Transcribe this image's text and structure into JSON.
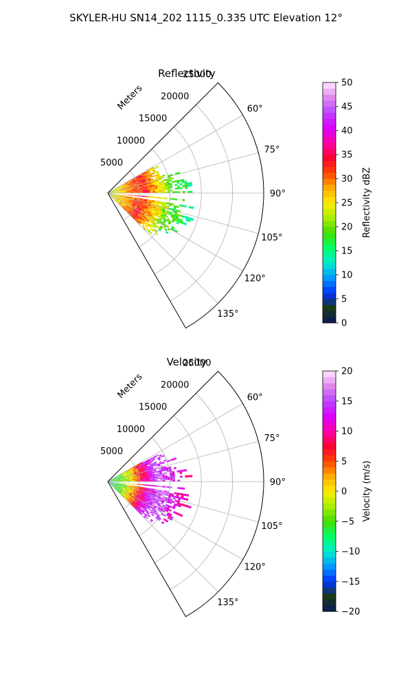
{
  "figure": {
    "suptitle": "SKYLER-HU  SN14_202  1115_0.335 UTC Elevation 12°"
  },
  "chart_data": [
    {
      "type": "heatmap",
      "projection": "polar-sector",
      "title": "Reflectivity",
      "radial_label": "Meters",
      "radial_range": [
        0,
        25000
      ],
      "radial_ticks": [
        5000,
        10000,
        15000,
        20000,
        25000
      ],
      "radial_tick_labels": [
        "5000",
        "10000",
        "15000",
        "20000",
        "25000"
      ],
      "azimuth_range": [
        45,
        150
      ],
      "azimuth_ticks": [
        60,
        75,
        90,
        105,
        120,
        135
      ],
      "azimuth_tick_labels": [
        "60°",
        "75°",
        "90°",
        "105°",
        "120°",
        "135°"
      ],
      "grid": true,
      "colorbar": {
        "label": "Reflectivity dBZ",
        "range": [
          0,
          50
        ],
        "ticks": [
          0,
          5,
          10,
          15,
          20,
          25,
          30,
          35,
          40,
          45,
          50
        ],
        "tick_labels": [
          "0",
          "5",
          "10",
          "15",
          "20",
          "25",
          "30",
          "35",
          "40",
          "45",
          "50"
        ],
        "levels": 40,
        "stops": [
          "#0b1a55",
          "#1a3a1a",
          "#0033ff",
          "#0099ff",
          "#00eecc",
          "#00ff66",
          "#44dd00",
          "#aaee00",
          "#ffee00",
          "#ffaa00",
          "#ff4400",
          "#ff0033",
          "#ff00aa",
          "#dd00ff",
          "#bb44ff",
          "#e088ee",
          "#ffe8ff"
        ]
      },
      "echo": {
        "min_range": 0,
        "max_range": 12800,
        "azimuth_span": [
          60,
          135
        ],
        "gaps": [
          [
            91,
            94
          ],
          [
            97,
            98
          ]
        ],
        "value_profile": [
          [
            0,
            22
          ],
          [
            3000,
            28
          ],
          [
            5500,
            33
          ],
          [
            8000,
            26
          ],
          [
            10000,
            19
          ],
          [
            12000,
            17
          ],
          [
            13000,
            15
          ]
        ]
      }
    },
    {
      "type": "heatmap",
      "projection": "polar-sector",
      "title": "Velocity",
      "radial_label": "Meters",
      "radial_range": [
        0,
        25000
      ],
      "radial_ticks": [
        5000,
        10000,
        15000,
        20000,
        25000
      ],
      "radial_tick_labels": [
        "5000",
        "10000",
        "15000",
        "20000",
        "25000"
      ],
      "azimuth_range": [
        45,
        150
      ],
      "azimuth_ticks": [
        60,
        75,
        90,
        105,
        120,
        135
      ],
      "azimuth_tick_labels": [
        "60°",
        "75°",
        "90°",
        "105°",
        "120°",
        "135°"
      ],
      "grid": true,
      "colorbar": {
        "label": "Velocity (m/s)",
        "range": [
          -20,
          20
        ],
        "ticks": [
          -20,
          -15,
          -10,
          -5,
          0,
          5,
          10,
          15,
          20
        ],
        "tick_labels": [
          "−20",
          "−15",
          "−10",
          "−5",
          "0",
          "5",
          "10",
          "15",
          "20"
        ],
        "levels": 40,
        "stops": [
          "#0b1a55",
          "#1a3a1a",
          "#0033ff",
          "#0099ff",
          "#00eecc",
          "#00ff66",
          "#44dd00",
          "#aaee00",
          "#ffee00",
          "#ffaa00",
          "#ff4400",
          "#ff0033",
          "#ff00aa",
          "#dd00ff",
          "#bb44ff",
          "#e088ee",
          "#ffe8ff"
        ]
      },
      "echo": {
        "min_range": 0,
        "max_range": 12800,
        "azimuth_span": [
          60,
          135
        ],
        "gaps": [
          [
            91,
            94
          ],
          [
            97,
            98
          ]
        ],
        "value_profile": [
          [
            0,
            -8
          ],
          [
            2000,
            -5
          ],
          [
            3500,
            0
          ],
          [
            5000,
            6
          ],
          [
            6500,
            12
          ],
          [
            8000,
            16
          ],
          [
            10000,
            14
          ],
          [
            11500,
            11
          ],
          [
            13000,
            9
          ]
        ]
      }
    }
  ]
}
